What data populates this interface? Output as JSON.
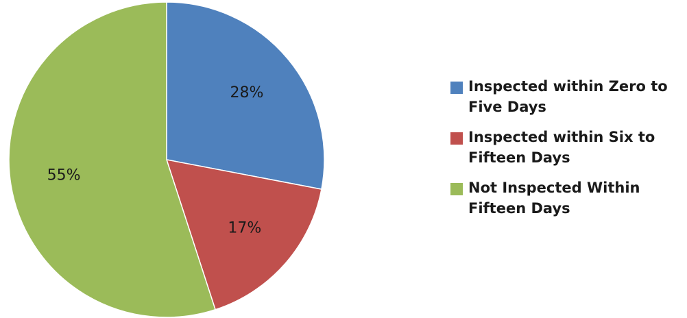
{
  "chart_data": {
    "type": "pie",
    "title": "",
    "slices": [
      {
        "label": "Inspected within Zero to Five Days",
        "value": 28,
        "display": "28%",
        "color": "#4f81bd"
      },
      {
        "label": "Inspected within Six to Fifteen Days",
        "value": 17,
        "display": "17%",
        "color": "#c0504d"
      },
      {
        "label": "Not Inspected Within Fifteen Days",
        "value": 55,
        "display": "55%",
        "color": "#9bbb59"
      }
    ],
    "start_angle_deg": 0,
    "direction": "clockwise",
    "legend_position": "right"
  }
}
